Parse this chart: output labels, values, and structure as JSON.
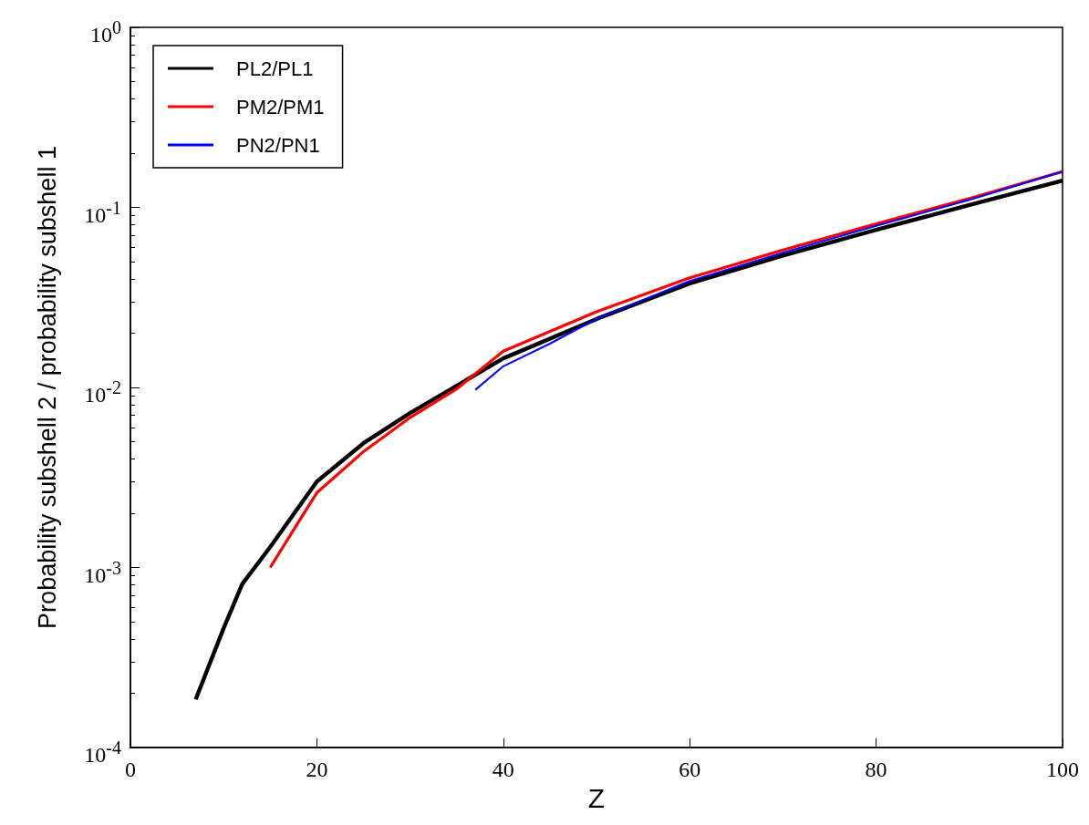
{
  "chart_data": {
    "type": "line",
    "xlabel": "Z",
    "ylabel": "Probability subshell 2 / probability subshell 1",
    "log": "y",
    "grid": false,
    "legend": "top left",
    "marker": "none",
    "line_style": "solid",
    "xlim": [
      0,
      100
    ],
    "xticks": [
      0,
      20,
      40,
      60,
      80,
      100
    ],
    "ylim": [
      0.0001,
      1
    ],
    "yticks": [
      {
        "value": 0.0001,
        "label": "10$^{-4}$"
      },
      {
        "value": 0.001,
        "label": "10$^{-3}$"
      },
      {
        "value": 0.01,
        "label": "10$^{-2}$"
      },
      {
        "value": 0.1,
        "label": "10$^{-1}$"
      },
      {
        "value": 1,
        "label": "10$^{0}$"
      }
    ],
    "series": [
      {
        "name": "PL2/PL1",
        "color": "#000000",
        "x": [
          7,
          10,
          12,
          15,
          20,
          25,
          30,
          40,
          50,
          60,
          70,
          80,
          90,
          100
        ],
        "values": [
          0.000185,
          0.00046,
          0.00081,
          0.0013,
          0.003,
          0.0049,
          0.0072,
          0.0145,
          0.024,
          0.0378,
          0.054,
          0.075,
          0.103,
          0.141
        ]
      },
      {
        "name": "PM2/PM1",
        "color": "#ff0000",
        "x": [
          15,
          18,
          20,
          25,
          30,
          35,
          40,
          50,
          60,
          70,
          80,
          90,
          100
        ],
        "values": [
          0.001,
          0.00178,
          0.0026,
          0.0044,
          0.0068,
          0.0098,
          0.0159,
          0.0263,
          0.0406,
          0.058,
          0.081,
          0.112,
          0.158
        ]
      },
      {
        "name": "PN2/PN1",
        "color": "#0000ff",
        "x": [
          37,
          40,
          45,
          50,
          60,
          70,
          80,
          90,
          100
        ],
        "values": [
          0.0097,
          0.0131,
          0.0175,
          0.024,
          0.039,
          0.056,
          0.079,
          0.11,
          0.158
        ]
      }
    ]
  }
}
